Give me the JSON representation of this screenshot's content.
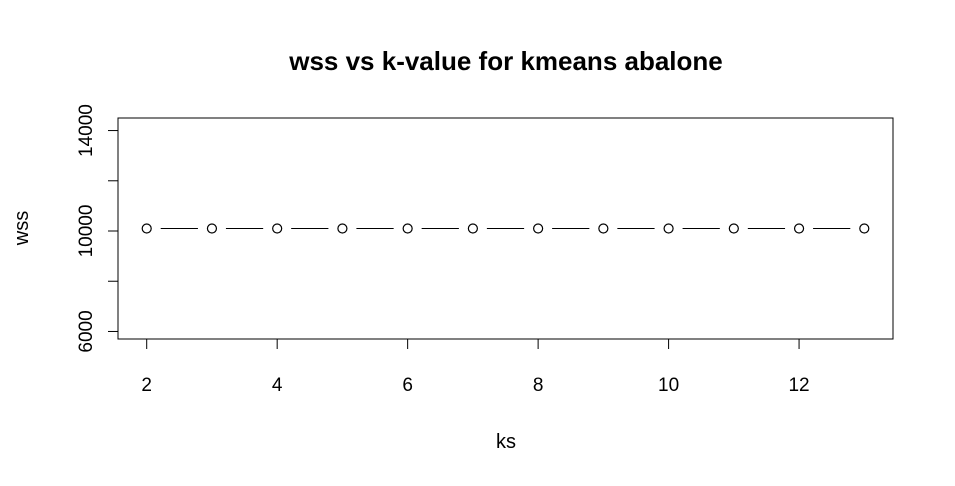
{
  "chart_data": {
    "type": "line",
    "title": "wss vs k-value for kmeans abalone",
    "xlabel": "ks",
    "ylabel": "wss",
    "x": [
      2,
      3,
      4,
      5,
      6,
      7,
      8,
      9,
      10,
      11,
      12,
      13
    ],
    "series": [
      {
        "values": [
          10100,
          10100,
          10100,
          10100,
          10100,
          10100,
          10100,
          10100,
          10100,
          10100,
          10100,
          10100
        ]
      }
    ],
    "x_ticks": [
      2,
      4,
      6,
      8,
      10,
      12
    ],
    "y_ticks": [
      6000,
      8000,
      10000,
      12000,
      14000
    ],
    "y_tick_labels": [
      "6000",
      "",
      "10000",
      "",
      "14000"
    ],
    "xlim": [
      1.56,
      13.44
    ],
    "ylim": [
      5700,
      14500
    ],
    "line_style": "b",
    "marker": "open-circle",
    "grid": false,
    "legend": "none"
  }
}
